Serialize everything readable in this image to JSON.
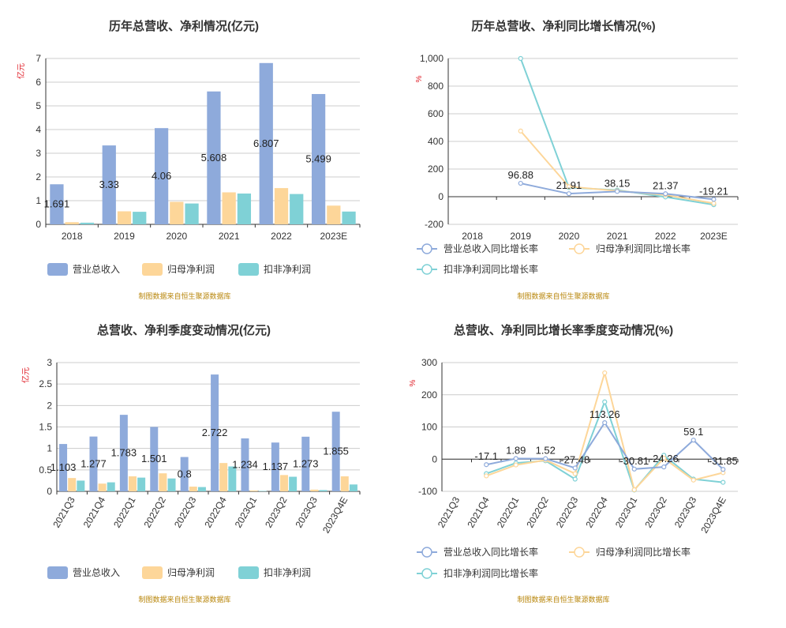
{
  "colors": {
    "revenue": "#8eaadb",
    "parent_profit": "#fdd699",
    "deducted_profit": "#7fd1d6",
    "axis": "#333333",
    "grid": "#cccccc",
    "unit": "#e0212a",
    "source": "#b8860b"
  },
  "source_text": "制图数据来自恒生聚源数据库",
  "chart_data": [
    {
      "id": "annual_values",
      "type": "bar",
      "title": "历年总营收、净利情况(亿元)",
      "ylabel": "亿元",
      "ylim": [
        0,
        7
      ],
      "yticks": [
        0,
        1,
        2,
        3,
        4,
        5,
        6,
        7
      ],
      "categories": [
        "2018",
        "2019",
        "2020",
        "2021",
        "2022",
        "2023E"
      ],
      "series": [
        {
          "name": "营业总收入",
          "values": [
            1.691,
            3.33,
            4.06,
            5.608,
            6.807,
            5.499
          ]
        },
        {
          "name": "归母净利润",
          "values": [
            0.09,
            0.55,
            0.95,
            1.35,
            1.53,
            0.79
          ]
        },
        {
          "name": "扣非净利润",
          "values": [
            0.07,
            0.53,
            0.88,
            1.3,
            1.28,
            0.54
          ]
        }
      ],
      "data_labels": [
        "1.691",
        "3.33",
        "4.06",
        "5.608",
        "6.807",
        "5.499"
      ]
    },
    {
      "id": "annual_growth",
      "type": "line",
      "title": "历年总营收、净利同比增长情况(%)",
      "ylabel": "%",
      "ylim": [
        -200,
        1000
      ],
      "yticks": [
        -200,
        0,
        200,
        400,
        600,
        800,
        1000
      ],
      "ytick_labels": [
        "-200",
        "0",
        "200",
        "400",
        "600",
        "800",
        "1,000"
      ],
      "categories": [
        "2018",
        "2019",
        "2020",
        "2021",
        "2022",
        "2023E"
      ],
      "series": [
        {
          "name": "营业总收入同比增长率",
          "values": [
            null,
            96.88,
            21.91,
            38.15,
            21.37,
            -19.21
          ]
        },
        {
          "name": "归母净利润同比增长率",
          "values": [
            null,
            475,
            73,
            42,
            13,
            -48
          ]
        },
        {
          "name": "扣非净利润同比增长率",
          "values": [
            null,
            1000,
            66,
            48,
            -2,
            -58
          ]
        }
      ],
      "data_labels": [
        "",
        "96.88",
        "21.91",
        "38.15",
        "21.37",
        "-19.21"
      ]
    },
    {
      "id": "quarterly_values",
      "type": "bar",
      "title": "总营收、净利季度变动情况(亿元)",
      "ylabel": "亿元",
      "ylim": [
        0,
        3
      ],
      "yticks": [
        0,
        0.5,
        1,
        1.5,
        2,
        2.5,
        3
      ],
      "ytick_labels": [
        "0",
        "0.5",
        "1",
        "1.5",
        "2",
        "2.5",
        "3"
      ],
      "categories": [
        "2021Q3",
        "2021Q4",
        "2022Q1",
        "2022Q2",
        "2022Q3",
        "2022Q4",
        "2023Q1",
        "2023Q2",
        "2023Q3",
        "2023Q4E"
      ],
      "series": [
        {
          "name": "营业总收入",
          "values": [
            1.103,
            1.277,
            1.783,
            1.501,
            0.8,
            2.722,
            1.234,
            1.137,
            1.273,
            1.855
          ]
        },
        {
          "name": "归母净利润",
          "values": [
            0.31,
            0.18,
            0.35,
            0.42,
            0.11,
            0.66,
            0.02,
            0.38,
            0.04,
            0.35
          ]
        },
        {
          "name": "扣非净利润",
          "values": [
            0.25,
            0.21,
            0.32,
            0.3,
            0.1,
            0.58,
            0.01,
            0.34,
            0.03,
            0.16
          ]
        }
      ],
      "data_labels": [
        "1.103",
        "1.277",
        "1.783",
        "1.501",
        "0.8",
        "2.722",
        "1.234",
        "1.137",
        "1.273",
        "1.855"
      ]
    },
    {
      "id": "quarterly_growth",
      "type": "line",
      "title": "总营收、净利同比增长率季度变动情况(%)",
      "ylabel": "%",
      "ylim": [
        -100,
        300
      ],
      "yticks": [
        -100,
        0,
        100,
        200,
        300
      ],
      "categories": [
        "2021Q3",
        "2021Q4",
        "2022Q1",
        "2022Q2",
        "2022Q3",
        "2022Q4",
        "2023Q1",
        "2023Q2",
        "2023Q3",
        "2023Q4E"
      ],
      "series": [
        {
          "name": "营业总收入同比增长率",
          "values": [
            null,
            -17.1,
            1.89,
            1.52,
            -27.48,
            113.26,
            -30.81,
            -24.26,
            59.1,
            -31.85
          ]
        },
        {
          "name": "归母净利润同比增长率",
          "values": [
            null,
            -52,
            -18,
            -3,
            -45,
            268,
            -95,
            3,
            -65,
            -42
          ]
        },
        {
          "name": "扣非净利润同比增长率",
          "values": [
            null,
            -45,
            -12,
            -5,
            -62,
            178,
            -96,
            12,
            -62,
            -72
          ]
        }
      ],
      "data_labels": [
        "",
        "-17.1",
        "1.89",
        "1.52",
        "-27.48",
        "113.26",
        "-30.81",
        "-24.26",
        "59.1",
        "-31.85"
      ]
    }
  ]
}
